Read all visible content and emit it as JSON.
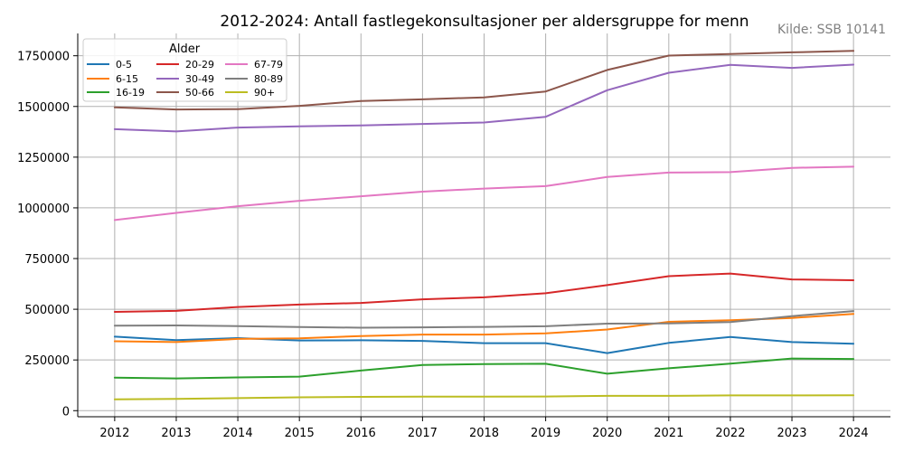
{
  "chart_data": {
    "type": "line",
    "title": "2012-2024: Antall fastlegekonsultasjoner per aldersgruppe for menn",
    "source": "Kilde: SSB 10141",
    "xlabel": "",
    "ylabel": "",
    "legend_title": "Alder",
    "legend_position": "top-left",
    "grid": true,
    "x": [
      2012,
      2013,
      2014,
      2015,
      2016,
      2017,
      2018,
      2019,
      2020,
      2021,
      2022,
      2023,
      2024
    ],
    "xlim": [
      2011.4,
      2024.6
    ],
    "ylim": [
      -30000,
      1860000
    ],
    "yticks": [
      0,
      250000,
      500000,
      750000,
      1000000,
      1250000,
      1500000,
      1750000
    ],
    "series": [
      {
        "name": "0-5",
        "color": "#1f77b4",
        "values": [
          365000,
          348000,
          358000,
          346000,
          347000,
          344000,
          333000,
          333000,
          284000,
          334000,
          363000,
          338000,
          330000
        ]
      },
      {
        "name": "6-15",
        "color": "#ff7f0e",
        "values": [
          342000,
          338000,
          354000,
          357000,
          368000,
          375000,
          375000,
          381000,
          400000,
          438000,
          446000,
          457000,
          477000
        ]
      },
      {
        "name": "16-19",
        "color": "#2ca02c",
        "values": [
          163000,
          159000,
          164000,
          168000,
          198000,
          225000,
          230000,
          231000,
          182000,
          209000,
          232000,
          257000,
          255000
        ]
      },
      {
        "name": "20-29",
        "color": "#d62728",
        "values": [
          487000,
          492000,
          511000,
          523000,
          531000,
          549000,
          559000,
          579000,
          619000,
          663000,
          676000,
          647000,
          643000
        ]
      },
      {
        "name": "30-49",
        "color": "#9467bd",
        "values": [
          1388000,
          1377000,
          1396000,
          1402000,
          1406000,
          1414000,
          1421000,
          1449000,
          1580000,
          1666000,
          1705000,
          1690000,
          1706000
        ]
      },
      {
        "name": "50-66",
        "color": "#8c564b",
        "values": [
          1496000,
          1485000,
          1487000,
          1503000,
          1527000,
          1535000,
          1545000,
          1574000,
          1680000,
          1751000,
          1759000,
          1767000,
          1774000
        ]
      },
      {
        "name": "67-79",
        "color": "#e377c2",
        "values": [
          940000,
          975000,
          1008000,
          1035000,
          1057000,
          1080000,
          1095000,
          1107000,
          1152000,
          1174000,
          1176000,
          1197000,
          1203000
        ]
      },
      {
        "name": "80-89",
        "color": "#7f7f7f",
        "values": [
          419000,
          420000,
          417000,
          412000,
          409000,
          411000,
          413000,
          416000,
          429000,
          430000,
          437000,
          466000,
          491000
        ]
      },
      {
        "name": "90+",
        "color": "#bcbd22",
        "values": [
          56000,
          58000,
          62000,
          66000,
          68000,
          69000,
          69000,
          70000,
          73000,
          73000,
          75000,
          75000,
          76000
        ]
      }
    ]
  }
}
